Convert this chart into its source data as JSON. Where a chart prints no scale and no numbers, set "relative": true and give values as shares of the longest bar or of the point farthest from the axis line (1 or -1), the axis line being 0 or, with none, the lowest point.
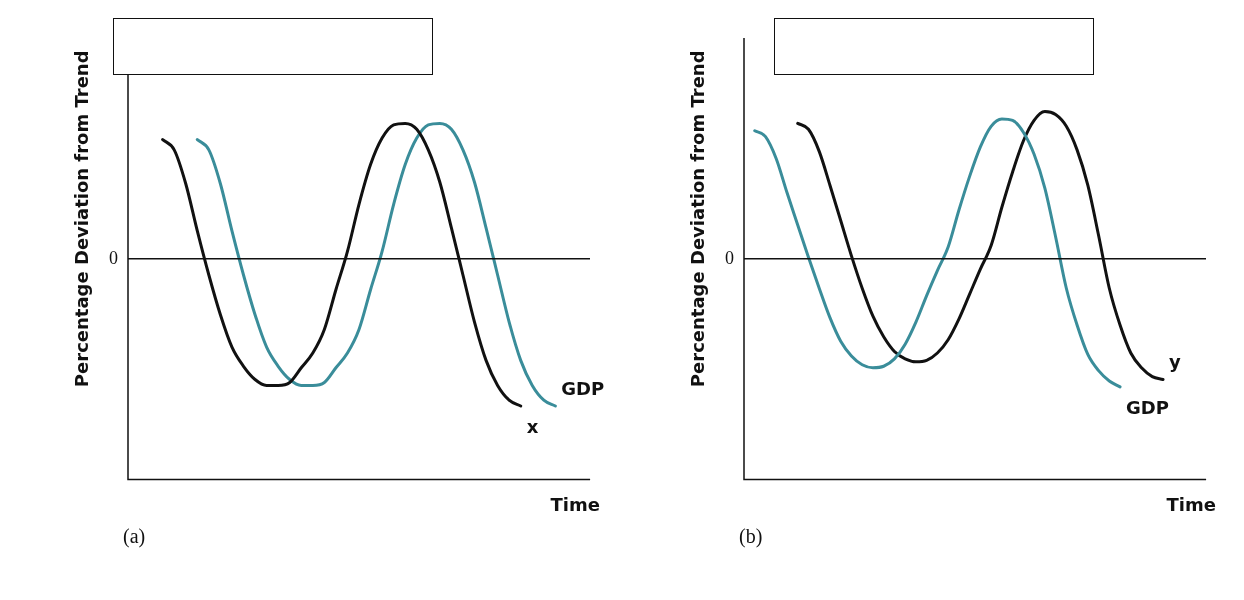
{
  "chart_data": [
    {
      "type": "line",
      "relative": true,
      "xlabel": "Time",
      "ylabel": "Percentage Deviation from Trend",
      "annotations": [
        "(a)"
      ],
      "legend": false,
      "marker": "none",
      "categories": [
        null,
        null,
        null,
        null,
        null,
        null,
        null,
        null,
        null,
        null,
        null,
        null,
        null,
        null,
        null,
        null,
        null,
        null,
        null,
        null,
        null,
        null,
        null,
        null,
        null,
        null,
        null,
        null,
        null,
        null,
        null,
        null,
        null,
        null,
        null,
        null,
        null,
        null,
        null,
        null,
        null
      ],
      "ref_lines": [
        {
          "axis": "y",
          "value": 0,
          "label": "0"
        }
      ],
      "series": [
        {
          "name": "x",
          "color": "#111111",
          "values": [
            null,
            null,
            null,
            0.81,
            0.74,
            0.51,
            0.19,
            -0.11,
            -0.38,
            -0.6,
            -0.73,
            -0.82,
            -0.86,
            -0.86,
            -0.84,
            -0.74,
            -0.64,
            -0.48,
            -0.21,
            0.05,
            0.37,
            0.64,
            0.82,
            0.91,
            0.92,
            0.88,
            0.74,
            0.52,
            0.21,
            -0.11,
            -0.43,
            -0.69,
            -0.86,
            -0.96,
            -1,
            null,
            null,
            null,
            null,
            null,
            null
          ]
        },
        {
          "name": "GDP",
          "color": "#3a8d9a",
          "values": [
            null,
            null,
            null,
            null,
            null,
            null,
            0.81,
            0.74,
            0.51,
            0.19,
            -0.11,
            -0.38,
            -0.6,
            -0.73,
            -0.82,
            -0.86,
            -0.86,
            -0.84,
            -0.74,
            -0.64,
            -0.48,
            -0.21,
            0.05,
            0.37,
            0.64,
            0.82,
            0.91,
            0.92,
            0.88,
            0.74,
            0.52,
            0.21,
            -0.11,
            -0.43,
            -0.69,
            -0.86,
            -0.96,
            -1,
            null,
            null,
            null
          ]
        }
      ]
    },
    {
      "type": "line",
      "relative": true,
      "xlabel": "Time",
      "ylabel": "Percentage Deviation from Trend",
      "annotations": [
        "(b)"
      ],
      "legend": false,
      "marker": "none",
      "categories": [
        null,
        null,
        null,
        null,
        null,
        null,
        null,
        null,
        null,
        null,
        null,
        null,
        null,
        null,
        null,
        null,
        null,
        null,
        null,
        null,
        null,
        null,
        null,
        null,
        null,
        null,
        null,
        null,
        null,
        null,
        null,
        null,
        null,
        null,
        null,
        null,
        null,
        null,
        null,
        null,
        null,
        null,
        null,
        null
      ],
      "ref_lines": [
        {
          "axis": "y",
          "value": 0,
          "label": "0"
        }
      ],
      "series": [
        {
          "name": "GDP",
          "color": "#3a8d9a",
          "values": [
            null,
            0.87,
            0.83,
            0.68,
            0.45,
            0.23,
            0.01,
            -0.2,
            -0.4,
            -0.56,
            -0.66,
            -0.72,
            -0.74,
            -0.73,
            -0.68,
            -0.58,
            -0.43,
            -0.25,
            -0.08,
            0.08,
            0.33,
            0.56,
            0.76,
            0.9,
            0.95,
            0.94,
            0.86,
            0.71,
            0.48,
            0.15,
            -0.2,
            -0.45,
            -0.65,
            -0.76,
            -0.83,
            -0.87,
            null,
            null,
            null,
            null,
            null,
            null,
            null,
            null
          ]
        },
        {
          "name": "y",
          "color": "#111111",
          "values": [
            null,
            null,
            null,
            null,
            null,
            0.92,
            0.88,
            0.73,
            0.5,
            0.26,
            0.02,
            -0.2,
            -0.39,
            -0.53,
            -0.63,
            -0.68,
            -0.7,
            -0.69,
            -0.64,
            -0.55,
            -0.41,
            -0.24,
            -0.07,
            0.09,
            0.35,
            0.59,
            0.8,
            0.94,
            1,
            0.98,
            0.9,
            0.74,
            0.5,
            0.16,
            -0.2,
            -0.45,
            -0.64,
            -0.74,
            -0.8,
            -0.82,
            null,
            null,
            null,
            null
          ]
        }
      ]
    }
  ]
}
